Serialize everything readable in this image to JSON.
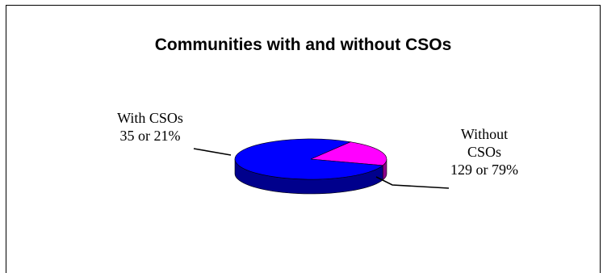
{
  "chart_data": {
    "type": "pie",
    "title": "Communities with and without CSOs",
    "slices": [
      {
        "label_lines": [
          "With CSOs",
          "35 or 21%"
        ],
        "category": "With CSOs",
        "value": 35,
        "percent": 21,
        "color": "#ff00ff"
      },
      {
        "label_lines": [
          "Without",
          "CSOs",
          "129 or 79%"
        ],
        "category": "Without CSOs",
        "value": 129,
        "percent": 79,
        "color": "#0000ff"
      }
    ],
    "legend": "none",
    "style": "3d"
  }
}
